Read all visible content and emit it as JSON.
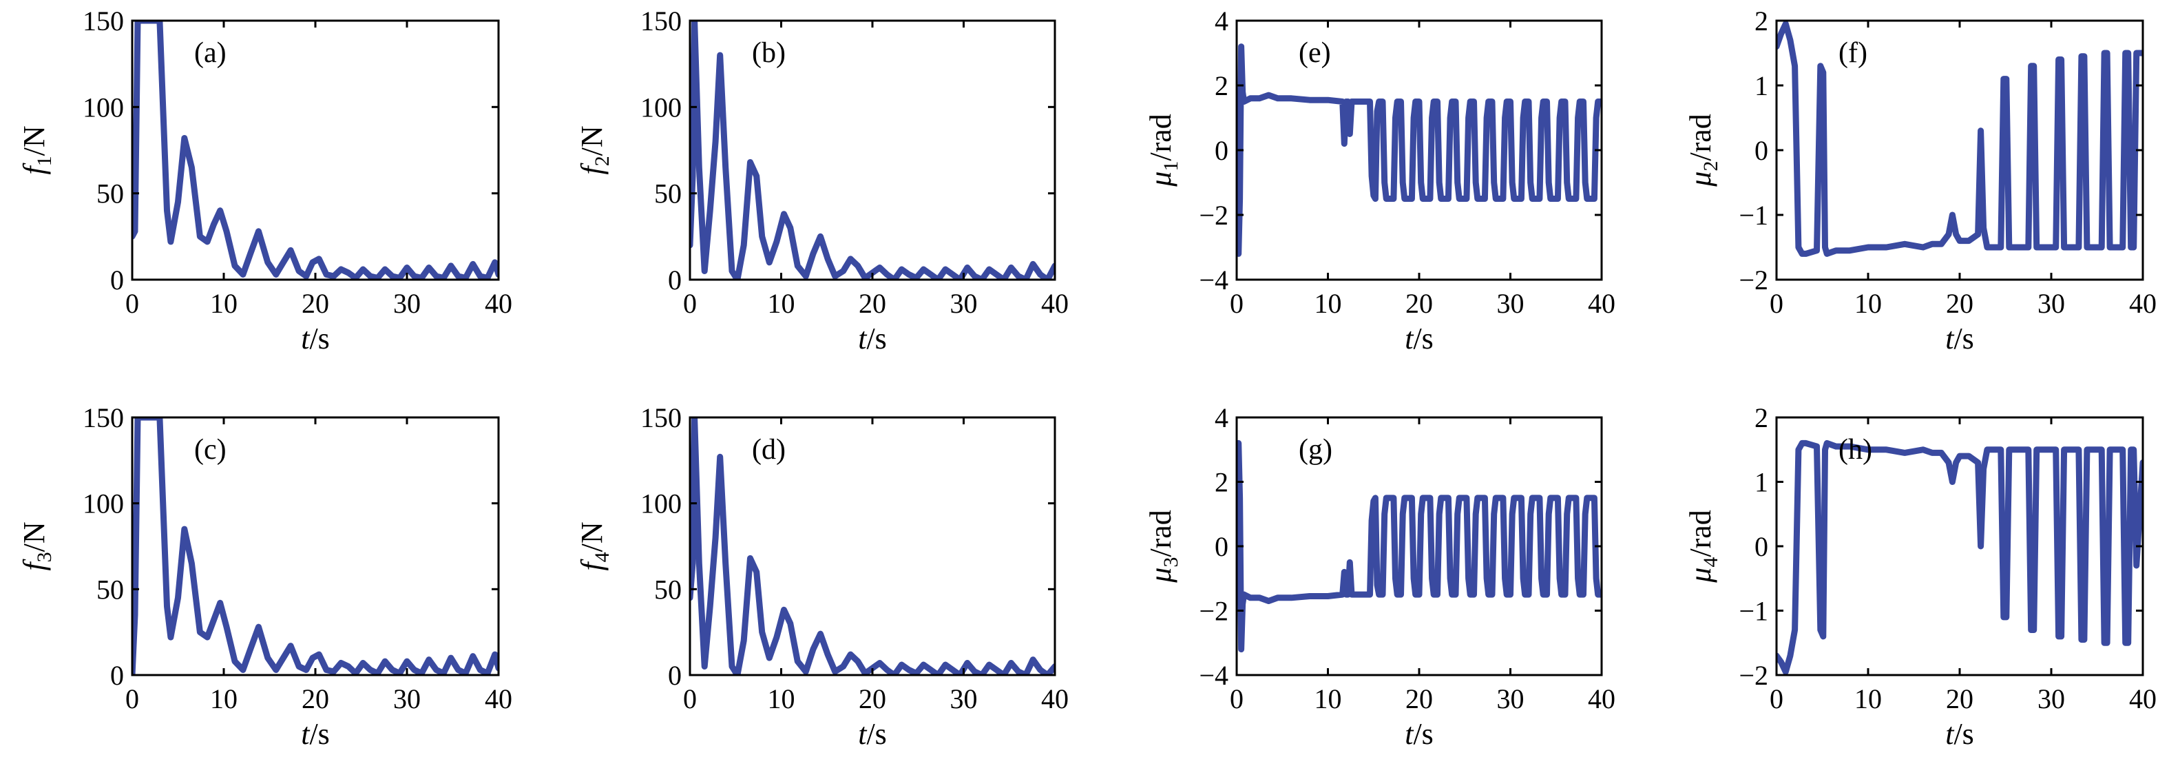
{
  "style": {
    "line_color": "#3a4aa0"
  },
  "chart_data": [
    {
      "id": "a",
      "type": "line",
      "panel_label": "(a)",
      "ylabel": {
        "symbol": "f",
        "sub": "1",
        "unit": "/N"
      },
      "xlabel": {
        "symbol": "t",
        "unit": "/s"
      },
      "xlim": [
        0,
        40
      ],
      "ylim": [
        0,
        150
      ],
      "xticks": [
        0,
        10,
        20,
        30,
        40
      ],
      "yticks": [
        0,
        50,
        100,
        150
      ],
      "x": [
        0,
        0.3,
        0.6,
        1.0,
        2.0,
        3.0,
        3.8,
        4.2,
        5.0,
        5.7,
        6.5,
        7.4,
        8.2,
        8.9,
        9.6,
        10.3,
        11.2,
        12.1,
        12.9,
        13.8,
        14.8,
        15.7,
        16.5,
        17.3,
        18.2,
        19.0,
        19.7,
        20.4,
        21.2,
        22.0,
        22.8,
        23.6,
        24.4,
        25.2,
        26.0,
        26.8,
        27.6,
        28.4,
        29.2,
        30.0,
        30.8,
        31.6,
        32.4,
        33.2,
        34.0,
        34.8,
        35.6,
        36.4,
        37.2,
        38.0,
        38.8,
        39.6,
        40.0
      ],
      "y": [
        25,
        28,
        150,
        150,
        150,
        150,
        40,
        22,
        45,
        82,
        65,
        25,
        22,
        32,
        40,
        28,
        8,
        3,
        15,
        28,
        10,
        3,
        10,
        17,
        5,
        2,
        10,
        12,
        3,
        2,
        6,
        4,
        1,
        6,
        2,
        1,
        6,
        2,
        1,
        7,
        2,
        1,
        7,
        2,
        1,
        8,
        2,
        1,
        9,
        2,
        1,
        10,
        3
      ]
    },
    {
      "id": "b",
      "type": "line",
      "panel_label": "(b)",
      "ylabel": {
        "symbol": "f",
        "sub": "2",
        "unit": "/N"
      },
      "xlabel": {
        "symbol": "t",
        "unit": "/s"
      },
      "xlim": [
        0,
        40
      ],
      "ylim": [
        0,
        150
      ],
      "xticks": [
        0,
        10,
        20,
        30,
        40
      ],
      "yticks": [
        0,
        50,
        100,
        150
      ],
      "x": [
        0,
        0.3,
        0.5,
        1.0,
        1.6,
        2.2,
        2.8,
        3.3,
        3.9,
        4.6,
        5.2,
        5.9,
        6.6,
        7.3,
        7.9,
        8.7,
        9.5,
        10.3,
        11.0,
        11.8,
        12.7,
        13.5,
        14.3,
        15.1,
        15.9,
        16.8,
        17.6,
        18.4,
        19.2,
        20.0,
        20.8,
        21.6,
        22.4,
        23.2,
        24.0,
        24.8,
        25.6,
        26.4,
        27.2,
        28.0,
        28.8,
        29.6,
        30.4,
        31.2,
        32.0,
        32.8,
        33.6,
        34.4,
        35.2,
        36.0,
        36.8,
        37.6,
        38.4,
        39.2,
        40.0
      ],
      "y": [
        20,
        60,
        150,
        65,
        5,
        40,
        80,
        130,
        65,
        5,
        0,
        20,
        68,
        60,
        25,
        10,
        22,
        38,
        30,
        8,
        2,
        15,
        25,
        12,
        2,
        5,
        12,
        8,
        1,
        4,
        7,
        3,
        0,
        6,
        3,
        1,
        6,
        3,
        0,
        6,
        3,
        0,
        7,
        2,
        0,
        6,
        3,
        0,
        7,
        2,
        0,
        9,
        3,
        0,
        8
      ]
    },
    {
      "id": "c",
      "type": "line",
      "panel_label": "(c)",
      "ylabel": {
        "symbol": "f",
        "sub": "3",
        "unit": "/N"
      },
      "xlabel": {
        "symbol": "t",
        "unit": "/s"
      },
      "xlim": [
        0,
        40
      ],
      "ylim": [
        0,
        150
      ],
      "xticks": [
        0,
        10,
        20,
        30,
        40
      ],
      "yticks": [
        0,
        50,
        100,
        150
      ],
      "x": [
        0,
        0.3,
        0.6,
        1.0,
        2.0,
        3.0,
        3.8,
        4.2,
        5.0,
        5.7,
        6.5,
        7.4,
        8.2,
        8.9,
        9.6,
        10.3,
        11.2,
        12.1,
        12.9,
        13.8,
        14.8,
        15.7,
        16.5,
        17.3,
        18.2,
        19.0,
        19.7,
        20.4,
        21.2,
        22.0,
        22.8,
        23.6,
        24.4,
        25.2,
        26.0,
        26.8,
        27.6,
        28.4,
        29.2,
        30.0,
        30.8,
        31.6,
        32.4,
        33.2,
        34.0,
        34.8,
        35.6,
        36.4,
        37.2,
        38.0,
        38.8,
        39.6,
        40.0
      ],
      "y": [
        0,
        35,
        150,
        150,
        150,
        150,
        40,
        22,
        45,
        85,
        65,
        25,
        22,
        32,
        42,
        28,
        8,
        3,
        15,
        28,
        10,
        3,
        10,
        17,
        5,
        3,
        10,
        12,
        3,
        2,
        7,
        5,
        1,
        7,
        3,
        1,
        8,
        3,
        1,
        8,
        3,
        1,
        9,
        3,
        1,
        10,
        3,
        1,
        11,
        3,
        1,
        12,
        4
      ]
    },
    {
      "id": "d",
      "type": "line",
      "panel_label": "(d)",
      "ylabel": {
        "symbol": "f",
        "sub": "4",
        "unit": "/N"
      },
      "xlabel": {
        "symbol": "t",
        "unit": "/s"
      },
      "xlim": [
        0,
        40
      ],
      "ylim": [
        0,
        150
      ],
      "xticks": [
        0,
        10,
        20,
        30,
        40
      ],
      "yticks": [
        0,
        50,
        100,
        150
      ],
      "x": [
        0,
        0.3,
        0.5,
        1.0,
        1.6,
        2.2,
        2.8,
        3.3,
        3.9,
        4.6,
        5.2,
        5.9,
        6.6,
        7.3,
        7.9,
        8.7,
        9.5,
        10.3,
        11.0,
        11.8,
        12.7,
        13.5,
        14.3,
        15.1,
        15.9,
        16.8,
        17.6,
        18.4,
        19.2,
        20.0,
        20.8,
        21.6,
        22.4,
        23.2,
        24.0,
        24.8,
        25.6,
        26.4,
        27.2,
        28.0,
        28.8,
        29.6,
        30.4,
        31.2,
        32.0,
        32.8,
        33.6,
        34.4,
        35.2,
        36.0,
        36.8,
        37.6,
        38.4,
        39.2,
        40.0
      ],
      "y": [
        45,
        65,
        150,
        65,
        5,
        40,
        80,
        127,
        65,
        5,
        0,
        20,
        68,
        60,
        25,
        10,
        22,
        38,
        30,
        8,
        2,
        15,
        24,
        12,
        2,
        5,
        12,
        8,
        1,
        4,
        7,
        3,
        0,
        6,
        3,
        1,
        6,
        3,
        0,
        6,
        3,
        0,
        7,
        2,
        0,
        6,
        3,
        0,
        7,
        2,
        0,
        9,
        3,
        0,
        5
      ]
    },
    {
      "id": "e",
      "type": "line",
      "panel_label": "(e)",
      "ylabel": {
        "symbol": "μ",
        "sub": "1",
        "unit": "/rad"
      },
      "xlabel": {
        "symbol": "t",
        "unit": "/s"
      },
      "xlim": [
        0,
        40
      ],
      "ylim": [
        -4,
        4
      ],
      "xticks": [
        0,
        10,
        20,
        30,
        40
      ],
      "yticks": [
        -4,
        -2,
        0,
        2,
        4
      ],
      "x": [
        0,
        0.2,
        0.35,
        0.5,
        0.65,
        0.8,
        1.5,
        2.5,
        3.5,
        4.5,
        6,
        8,
        10,
        11.6,
        11.8,
        12.0,
        12.2,
        12.4,
        12.6,
        14.6,
        14.8,
        15.0,
        15.2,
        15.4,
        15.6,
        16.0,
        16.2,
        16.4,
        17.2,
        17.4,
        17.6,
        18.0,
        18.2,
        18.4,
        19.2,
        19.4,
        19.6,
        20.0,
        20.2,
        20.4,
        21.2,
        21.4,
        21.6,
        22.0,
        22.2,
        22.4,
        23.2,
        23.4,
        23.6,
        24.0,
        24.2,
        24.4,
        25.2,
        25.4,
        25.6,
        26.0,
        26.2,
        26.4,
        27.2,
        27.4,
        27.6,
        28.0,
        28.2,
        28.4,
        29.2,
        29.4,
        29.6,
        30.0,
        30.2,
        30.4,
        31.2,
        31.4,
        31.6,
        32.0,
        32.2,
        32.4,
        33.2,
        33.4,
        33.6,
        34.0,
        34.2,
        34.4,
        35.2,
        35.4,
        35.6,
        36.0,
        36.2,
        36.4,
        37.2,
        37.4,
        37.6,
        38.0,
        38.2,
        38.4,
        39.2,
        39.4,
        39.6,
        40.0
      ],
      "y": [
        -1.2,
        -3.2,
        -1.5,
        3.2,
        1.8,
        1.5,
        1.6,
        1.6,
        1.7,
        1.6,
        1.6,
        1.55,
        1.55,
        1.5,
        0.2,
        1.5,
        1.5,
        0.5,
        1.5,
        1.5,
        -0.8,
        -1.4,
        -1.5,
        1.2,
        1.5,
        1.5,
        -1.0,
        -1.5,
        -1.5,
        1.0,
        1.5,
        1.5,
        -1.0,
        -1.5,
        -1.5,
        1.0,
        1.5,
        1.5,
        -1.0,
        -1.5,
        -1.5,
        1.0,
        1.5,
        1.5,
        -1.0,
        -1.5,
        -1.5,
        1.0,
        1.5,
        1.5,
        -1.0,
        -1.5,
        -1.5,
        1.0,
        1.5,
        1.5,
        -1.0,
        -1.5,
        -1.5,
        1.0,
        1.5,
        1.5,
        -1.0,
        -1.5,
        -1.5,
        1.0,
        1.5,
        1.5,
        -1.0,
        -1.5,
        -1.5,
        1.0,
        1.5,
        1.5,
        -1.0,
        -1.5,
        -1.5,
        1.0,
        1.5,
        1.5,
        -1.0,
        -1.5,
        -1.5,
        1.0,
        1.5,
        1.5,
        -1.0,
        -1.5,
        -1.5,
        1.0,
        1.5,
        1.5,
        -1.0,
        -1.5,
        -1.5,
        1.0,
        1.5,
        1.5
      ]
    },
    {
      "id": "f",
      "type": "line",
      "panel_label": "(f)",
      "ylabel": {
        "symbol": "μ",
        "sub": "2",
        "unit": "/rad"
      },
      "xlabel": {
        "symbol": "t",
        "unit": "/s"
      },
      "xlim": [
        0,
        40
      ],
      "ylim": [
        -2,
        2
      ],
      "xticks": [
        0,
        10,
        20,
        30,
        40
      ],
      "yticks": [
        -2,
        -1,
        0,
        1,
        2
      ],
      "x": [
        0,
        0.5,
        1.0,
        1.5,
        2.0,
        2.4,
        2.8,
        3.2,
        4.4,
        4.8,
        5.1,
        5.3,
        5.5,
        6.5,
        8,
        10,
        12,
        14,
        16,
        17,
        18,
        18.8,
        19.2,
        19.6,
        20,
        21,
        22.0,
        22.3,
        22.6,
        23.0,
        24.5,
        24.8,
        25.1,
        25.4,
        25.7,
        26.0,
        27.5,
        27.8,
        28.1,
        28.4,
        28.7,
        29.0,
        30.5,
        30.8,
        31.1,
        31.4,
        31.7,
        32.0,
        33.0,
        33.3,
        33.6,
        33.9,
        34.2,
        34.5,
        35.5,
        35.8,
        36.1,
        36.4,
        36.7,
        37.0,
        37.8,
        38.1,
        38.4,
        38.7,
        39.0,
        39.3,
        40.0
      ],
      "y": [
        1.6,
        1.8,
        1.95,
        1.7,
        1.3,
        -1.5,
        -1.6,
        -1.6,
        -1.55,
        1.3,
        1.2,
        -1.5,
        -1.6,
        -1.55,
        -1.55,
        -1.5,
        -1.5,
        -1.45,
        -1.5,
        -1.45,
        -1.45,
        -1.3,
        -1.0,
        -1.3,
        -1.4,
        -1.4,
        -1.3,
        0.3,
        -1.2,
        -1.5,
        -1.5,
        1.1,
        1.1,
        -1.5,
        -1.5,
        -1.5,
        -1.5,
        1.3,
        1.3,
        -1.5,
        -1.5,
        -1.5,
        -1.5,
        1.4,
        1.4,
        -1.5,
        -1.5,
        -1.5,
        -1.5,
        1.45,
        1.45,
        -1.5,
        -1.5,
        -1.5,
        -1.5,
        1.5,
        1.5,
        -1.5,
        -1.5,
        -1.5,
        -1.5,
        1.5,
        1.5,
        -1.5,
        -1.5,
        1.5,
        1.5
      ]
    },
    {
      "id": "g",
      "type": "line",
      "panel_label": "(g)",
      "ylabel": {
        "symbol": "μ",
        "sub": "3",
        "unit": "/rad"
      },
      "xlabel": {
        "symbol": "t",
        "unit": "/s"
      },
      "xlim": [
        0,
        40
      ],
      "ylim": [
        -4,
        4
      ],
      "xticks": [
        0,
        10,
        20,
        30,
        40
      ],
      "yticks": [
        -4,
        -2,
        0,
        2,
        4
      ],
      "x": [
        0,
        0.2,
        0.35,
        0.5,
        0.65,
        0.8,
        1.5,
        2.5,
        3.5,
        4.5,
        6,
        8,
        10,
        11.6,
        11.8,
        12.0,
        12.2,
        12.4,
        12.6,
        14.6,
        14.8,
        15.0,
        15.2,
        15.4,
        15.6,
        16.0,
        16.2,
        16.4,
        17.2,
        17.4,
        17.6,
        18.0,
        18.2,
        18.4,
        19.2,
        19.4,
        19.6,
        20.0,
        20.2,
        20.4,
        21.2,
        21.4,
        21.6,
        22.0,
        22.2,
        22.4,
        23.2,
        23.4,
        23.6,
        24.0,
        24.2,
        24.4,
        25.2,
        25.4,
        25.6,
        26.0,
        26.2,
        26.4,
        27.2,
        27.4,
        27.6,
        28.0,
        28.2,
        28.4,
        29.2,
        29.4,
        29.6,
        30.0,
        30.2,
        30.4,
        31.2,
        31.4,
        31.6,
        32.0,
        32.2,
        32.4,
        33.2,
        33.4,
        33.6,
        34.0,
        34.2,
        34.4,
        35.2,
        35.4,
        35.6,
        36.0,
        36.2,
        36.4,
        37.2,
        37.4,
        37.6,
        38.0,
        38.2,
        38.4,
        39.2,
        39.4,
        39.6,
        40.0
      ],
      "y": [
        1.2,
        3.2,
        1.5,
        -3.2,
        -1.8,
        -1.5,
        -1.6,
        -1.6,
        -1.7,
        -1.6,
        -1.6,
        -1.55,
        -1.55,
        -1.5,
        -0.8,
        -1.5,
        -1.5,
        -0.5,
        -1.5,
        -1.5,
        0.8,
        1.4,
        1.5,
        -1.2,
        -1.5,
        -1.5,
        1.0,
        1.5,
        1.5,
        -1.0,
        -1.5,
        -1.5,
        1.0,
        1.5,
        1.5,
        -1.0,
        -1.5,
        -1.5,
        1.0,
        1.5,
        1.5,
        -1.0,
        -1.5,
        -1.5,
        1.0,
        1.5,
        1.5,
        -1.0,
        -1.5,
        -1.5,
        1.0,
        1.5,
        1.5,
        -1.0,
        -1.5,
        -1.5,
        1.0,
        1.5,
        1.5,
        -1.0,
        -1.5,
        -1.5,
        1.0,
        1.5,
        1.5,
        -1.0,
        -1.5,
        -1.5,
        1.0,
        1.5,
        1.5,
        -1.0,
        -1.5,
        -1.5,
        1.0,
        1.5,
        1.5,
        -1.0,
        -1.5,
        -1.5,
        1.0,
        1.5,
        1.5,
        -1.0,
        -1.5,
        -1.5,
        1.0,
        1.5,
        1.5,
        -1.0,
        -1.5,
        -1.5,
        1.0,
        1.5,
        1.5,
        -1.0,
        -1.5,
        -1.5
      ]
    },
    {
      "id": "h",
      "type": "line",
      "panel_label": "(h)",
      "ylabel": {
        "symbol": "μ",
        "sub": "4",
        "unit": "/rad"
      },
      "xlabel": {
        "symbol": "t",
        "unit": "/s"
      },
      "xlim": [
        0,
        40
      ],
      "ylim": [
        -2,
        2
      ],
      "xticks": [
        0,
        10,
        20,
        30,
        40
      ],
      "yticks": [
        -2,
        -1,
        0,
        1,
        2
      ],
      "x": [
        0,
        0.5,
        1.0,
        1.5,
        2.0,
        2.4,
        2.8,
        3.2,
        4.4,
        4.8,
        5.1,
        5.3,
        5.5,
        6.5,
        8,
        10,
        12,
        14,
        16,
        17,
        18,
        18.8,
        19.2,
        19.6,
        20,
        21,
        22.0,
        22.3,
        22.6,
        23.0,
        24.5,
        24.8,
        25.1,
        25.4,
        25.7,
        26.0,
        27.5,
        27.8,
        28.1,
        28.4,
        28.7,
        29.0,
        30.5,
        30.8,
        31.1,
        31.4,
        31.7,
        32.0,
        33.0,
        33.3,
        33.6,
        33.9,
        34.2,
        34.5,
        35.5,
        35.8,
        36.1,
        36.4,
        36.7,
        37.0,
        37.8,
        38.1,
        38.4,
        38.7,
        39.0,
        39.3,
        40.0
      ],
      "y": [
        -1.7,
        -1.8,
        -1.95,
        -1.7,
        -1.3,
        1.5,
        1.6,
        1.6,
        1.55,
        -1.3,
        -1.4,
        1.5,
        1.6,
        1.55,
        1.55,
        1.5,
        1.5,
        1.45,
        1.5,
        1.45,
        1.45,
        1.3,
        1.0,
        1.3,
        1.4,
        1.4,
        1.3,
        0.0,
        1.2,
        1.5,
        1.5,
        -1.1,
        -1.1,
        1.5,
        1.5,
        1.5,
        1.5,
        -1.3,
        -1.3,
        1.5,
        1.5,
        1.5,
        1.5,
        -1.4,
        -1.4,
        1.5,
        1.5,
        1.5,
        1.5,
        -1.45,
        -1.45,
        1.5,
        1.5,
        1.5,
        1.5,
        -1.5,
        -1.5,
        1.5,
        1.5,
        1.5,
        1.5,
        -1.5,
        -1.5,
        1.5,
        1.5,
        -0.3,
        1.3
      ]
    }
  ]
}
